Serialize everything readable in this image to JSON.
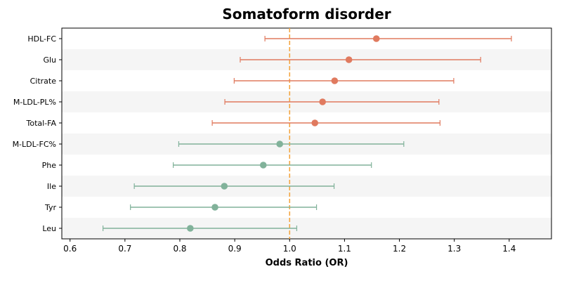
{
  "chart_data": {
    "type": "forest",
    "title": "Somatoform disorder",
    "xlabel": "Odds Ratio (OR)",
    "ylabel": "",
    "xlim": [
      0.585,
      1.477
    ],
    "xticks": [
      "0.6",
      "0.7",
      "0.8",
      "0.9",
      "1.0",
      "1.1",
      "1.2",
      "1.3",
      "1.4"
    ],
    "reference_line": 1.0,
    "grid": false,
    "row_banding": true,
    "colors": {
      "positive": "#E07A5F",
      "negative": "#81B29A",
      "reference": "#F4A641",
      "band": "#F5F5F5"
    },
    "categories": [
      "HDL-FC",
      "Glu",
      "Citrate",
      "M-LDL-PL%",
      "Total-FA",
      "M-LDL-FC%",
      "Phe",
      "Ile",
      "Tyr",
      "Leu"
    ],
    "or": [
      1.158,
      1.108,
      1.082,
      1.06,
      1.046,
      0.982,
      0.952,
      0.881,
      0.864,
      0.819
    ],
    "ci_low": [
      0.955,
      0.91,
      0.899,
      0.882,
      0.859,
      0.798,
      0.788,
      0.717,
      0.71,
      0.66
    ],
    "ci_high": [
      1.404,
      1.348,
      1.299,
      1.272,
      1.274,
      1.208,
      1.149,
      1.081,
      1.049,
      1.013
    ]
  }
}
